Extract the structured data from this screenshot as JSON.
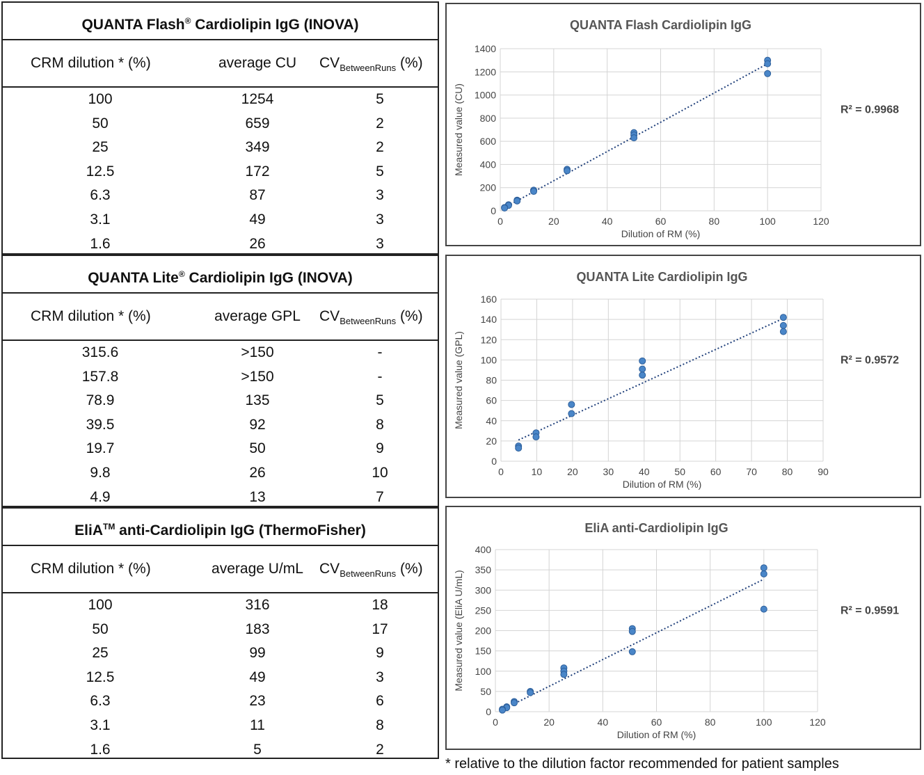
{
  "tables": [
    {
      "title": "QUANTA Flash",
      "title_mark": "®",
      "title_suffix": " Cardiolipin IgG (INOVA)",
      "col1": "CRM dilution * (%)",
      "col2": "average CU",
      "col3_main": "CV",
      "col3_sub": "BetweenRuns",
      "col3_unit": " (%)",
      "rows": [
        [
          "100",
          "1254",
          "5"
        ],
        [
          "50",
          "659",
          "2"
        ],
        [
          "25",
          "349",
          "2"
        ],
        [
          "12.5",
          "172",
          "5"
        ],
        [
          "6.3",
          "87",
          "3"
        ],
        [
          "3.1",
          "49",
          "3"
        ],
        [
          "1.6",
          "26",
          "3"
        ]
      ]
    },
    {
      "title": "QUANTA Lite",
      "title_mark": "®",
      "title_suffix": " Cardiolipin IgG (INOVA)",
      "col1": "CRM dilution * (%)",
      "col2": "average GPL",
      "col3_main": "CV",
      "col3_sub": "BetweenRuns",
      "col3_unit": " (%)",
      "rows": [
        [
          "315.6",
          ">150",
          "-"
        ],
        [
          "157.8",
          ">150",
          "-"
        ],
        [
          "78.9",
          "135",
          "5"
        ],
        [
          "39.5",
          "92",
          "8"
        ],
        [
          "19.7",
          "50",
          "9"
        ],
        [
          "9.8",
          "26",
          "10"
        ],
        [
          "4.9",
          "13",
          "7"
        ]
      ]
    },
    {
      "title": "EliA",
      "title_mark": "TM",
      "title_suffix": " anti-Cardiolipin IgG (ThermoFisher)",
      "col1": "CRM dilution * (%)",
      "col2": "average U/mL",
      "col3_main": "CV",
      "col3_sub": "BetweenRuns",
      "col3_unit": " (%)",
      "rows": [
        [
          "100",
          "316",
          "18"
        ],
        [
          "50",
          "183",
          "17"
        ],
        [
          "25",
          "99",
          "9"
        ],
        [
          "12.5",
          "49",
          "3"
        ],
        [
          "6.3",
          "23",
          "6"
        ],
        [
          "3.1",
          "11",
          "8"
        ],
        [
          "1.6",
          "5",
          "2"
        ]
      ]
    }
  ],
  "chart_data": [
    {
      "type": "scatter",
      "title": "QUANTA Flash Cardiolipin IgG",
      "xlabel": "Dilution of RM (%)",
      "ylabel": "Measured value (CU)",
      "xlim": [
        0,
        120
      ],
      "ylim": [
        0,
        1400
      ],
      "xticks": [
        0,
        20,
        40,
        60,
        80,
        100,
        120
      ],
      "yticks": [
        0,
        200,
        400,
        600,
        800,
        1000,
        1200,
        1400
      ],
      "grid": true,
      "trendline": "linear",
      "annotation": "R² = 0.9968",
      "points": [
        [
          100,
          1300
        ],
        [
          100,
          1270
        ],
        [
          100,
          1185
        ],
        [
          50,
          675
        ],
        [
          50,
          655
        ],
        [
          50,
          630
        ],
        [
          25,
          358
        ],
        [
          25,
          346
        ],
        [
          12.5,
          178
        ],
        [
          12.5,
          168
        ],
        [
          6.3,
          92
        ],
        [
          6.3,
          85
        ],
        [
          3.1,
          52
        ],
        [
          3.1,
          47
        ],
        [
          1.6,
          28
        ],
        [
          1.6,
          24
        ]
      ],
      "trend": [
        [
          1.6,
          27
        ],
        [
          100,
          1270
        ]
      ]
    },
    {
      "type": "scatter",
      "title": "QUANTA Lite Cardiolipin IgG",
      "xlabel": "Dilution of RM (%)",
      "ylabel": "Measured value (GPL)",
      "xlim": [
        0,
        90
      ],
      "ylim": [
        0,
        160
      ],
      "xticks": [
        0,
        10,
        20,
        30,
        40,
        50,
        60,
        70,
        80,
        90
      ],
      "yticks": [
        0,
        20,
        40,
        60,
        80,
        100,
        120,
        140,
        160
      ],
      "grid": true,
      "trendline": "linear",
      "annotation": "R² = 0.9572",
      "points": [
        [
          78.9,
          142
        ],
        [
          78.9,
          134
        ],
        [
          78.9,
          128
        ],
        [
          39.5,
          99
        ],
        [
          39.5,
          91
        ],
        [
          39.5,
          85
        ],
        [
          19.7,
          56
        ],
        [
          19.7,
          47
        ],
        [
          9.8,
          28
        ],
        [
          9.8,
          24
        ],
        [
          4.9,
          15
        ],
        [
          4.9,
          13
        ]
      ],
      "trend": [
        [
          4.9,
          21
        ],
        [
          78.9,
          141
        ]
      ]
    },
    {
      "type": "scatter",
      "title": "EliA anti-Cardiolipin IgG",
      "xlabel": "Dilution of RM (%)",
      "ylabel": "Measured value (EliA U/mL)",
      "xlim": [
        0,
        120
      ],
      "ylim": [
        0,
        400
      ],
      "xticks": [
        0,
        20,
        40,
        60,
        80,
        100,
        120
      ],
      "yticks": [
        0,
        50,
        100,
        150,
        200,
        250,
        300,
        350,
        400
      ],
      "grid": true,
      "trendline": "linear",
      "annotation": "R² = 0.9591",
      "points": [
        [
          100,
          355
        ],
        [
          100,
          340
        ],
        [
          100,
          253
        ],
        [
          51,
          205
        ],
        [
          51,
          198
        ],
        [
          51,
          148
        ],
        [
          25.5,
          108
        ],
        [
          25.5,
          100
        ],
        [
          25.5,
          92
        ],
        [
          13,
          50
        ],
        [
          13,
          47
        ],
        [
          7,
          25
        ],
        [
          7,
          22
        ],
        [
          4.2,
          12
        ],
        [
          4.2,
          10
        ],
        [
          2.6,
          6
        ],
        [
          2.6,
          4
        ]
      ],
      "trend": [
        [
          2.6,
          5
        ],
        [
          100,
          327
        ]
      ]
    }
  ],
  "footnote": "* relative to the dilution factor recommended for patient samples"
}
